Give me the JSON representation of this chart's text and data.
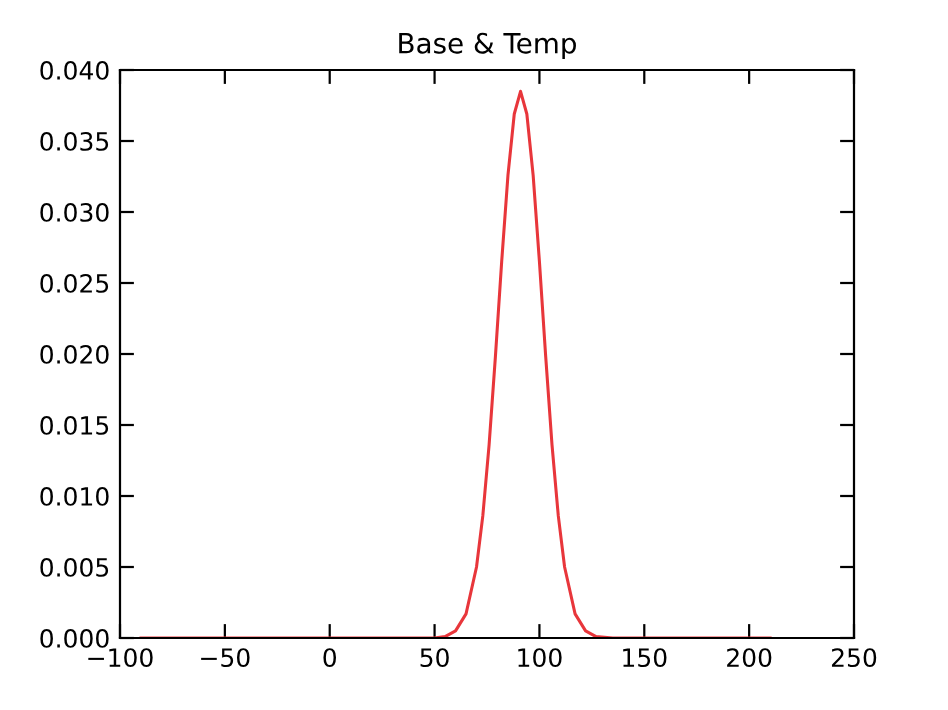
{
  "chart_data": {
    "type": "line",
    "title": "Base & Temp",
    "series": [
      {
        "color": "#e8363b",
        "x": [
          -90,
          0,
          50,
          55,
          60,
          65,
          70,
          73,
          76,
          79,
          82,
          85,
          88,
          91,
          94,
          97,
          100,
          103,
          106,
          109,
          112,
          117,
          122,
          127,
          135,
          210
        ],
        "values": [
          0,
          0,
          0.0,
          0.0001,
          0.0005,
          0.0017,
          0.005,
          0.0086,
          0.0136,
          0.0198,
          0.0265,
          0.0326,
          0.0369,
          0.0385,
          0.0369,
          0.0326,
          0.0265,
          0.0198,
          0.0136,
          0.0086,
          0.005,
          0.0017,
          0.0005,
          0.0001,
          0,
          0
        ]
      }
    ],
    "xlim": [
      -100,
      250
    ],
    "xticks": [
      {
        "value": -100,
        "label": "−100"
      },
      {
        "value": -50,
        "label": "−50"
      },
      0,
      50,
      100,
      150,
      200,
      250
    ],
    "ylim": [
      0,
      0.04
    ],
    "yticks": [
      {
        "value": 0,
        "label": "0.000"
      },
      {
        "value": 0.005,
        "label": "0.005"
      },
      {
        "value": 0.01,
        "label": "0.010"
      },
      {
        "value": 0.015,
        "label": "0.015"
      },
      {
        "value": 0.02,
        "label": "0.020"
      },
      {
        "value": 0.025,
        "label": "0.025"
      },
      {
        "value": 0.03,
        "label": "0.030"
      },
      {
        "value": 0.035,
        "label": "0.035"
      },
      {
        "value": 0.04,
        "label": "0.040"
      }
    ],
    "grid": false,
    "marker": "none",
    "line_style": "solid"
  }
}
